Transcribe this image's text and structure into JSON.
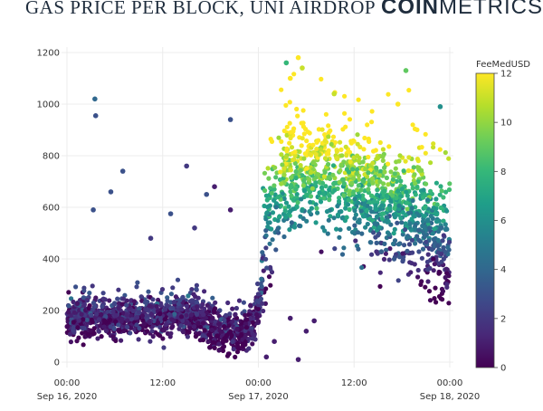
{
  "header": {
    "title": "GAS PRICE PER BLOCK, UNI AIRDROP",
    "logo_bold": "COIN",
    "logo_thin": "METRICS"
  },
  "chart_data": {
    "type": "scatter",
    "title": "GAS PRICE PER BLOCK, UNI AIRDROP",
    "xlabel": "",
    "ylabel": "",
    "ylim": [
      -20,
      1200
    ],
    "yticks": [
      0,
      200,
      400,
      600,
      800,
      1000,
      1200
    ],
    "xticks": [
      {
        "t": 0,
        "label": "00:00",
        "sublabel": "Sep 16, 2020"
      },
      {
        "t": 12,
        "label": "12:00",
        "sublabel": ""
      },
      {
        "t": 24,
        "label": "00:00",
        "sublabel": "Sep 17, 2020"
      },
      {
        "t": 36,
        "label": "12:00",
        "sublabel": ""
      },
      {
        "t": 48,
        "label": "00:00",
        "sublabel": "Sep 18, 2020"
      }
    ],
    "x_unit": "hours from Sep 16, 2020 00:00",
    "colorbar": {
      "title": "FeeMedUSD",
      "min": 0,
      "max": 12,
      "ticks": [
        0,
        2,
        4,
        6,
        8,
        10,
        12
      ],
      "colorscale": [
        "#440154",
        "#482878",
        "#3e4989",
        "#31688e",
        "#26828e",
        "#1f9e89",
        "#35b779",
        "#6ece58",
        "#b5de2b",
        "#fde725"
      ]
    },
    "trend": [
      {
        "x": 0,
        "y": 160
      },
      {
        "x": 2,
        "y": 175
      },
      {
        "x": 4,
        "y": 170
      },
      {
        "x": 6,
        "y": 165
      },
      {
        "x": 8,
        "y": 170
      },
      {
        "x": 10,
        "y": 175
      },
      {
        "x": 12,
        "y": 165
      },
      {
        "x": 14,
        "y": 190
      },
      {
        "x": 16,
        "y": 180
      },
      {
        "x": 18,
        "y": 130
      },
      {
        "x": 20,
        "y": 115
      },
      {
        "x": 22,
        "y": 110
      },
      {
        "x": 23.5,
        "y": 170
      },
      {
        "x": 24.5,
        "y": 300
      },
      {
        "x": 25,
        "y": 560
      },
      {
        "x": 26,
        "y": 640
      },
      {
        "x": 28,
        "y": 720
      },
      {
        "x": 30,
        "y": 740
      },
      {
        "x": 32,
        "y": 760
      },
      {
        "x": 34,
        "y": 720
      },
      {
        "x": 36,
        "y": 680
      },
      {
        "x": 38,
        "y": 640
      },
      {
        "x": 40,
        "y": 620
      },
      {
        "x": 42,
        "y": 600
      },
      {
        "x": 44,
        "y": 560
      },
      {
        "x": 46,
        "y": 480
      },
      {
        "x": 47,
        "y": 440
      },
      {
        "x": 48,
        "y": 460
      }
    ],
    "outliers": [
      {
        "x": 3.5,
        "y": 1020,
        "c": 4
      },
      {
        "x": 3.6,
        "y": 955,
        "c": 3
      },
      {
        "x": 5.5,
        "y": 660,
        "c": 3
      },
      {
        "x": 7,
        "y": 740,
        "c": 3
      },
      {
        "x": 3.3,
        "y": 590,
        "c": 3
      },
      {
        "x": 20.5,
        "y": 940,
        "c": 3
      },
      {
        "x": 20.5,
        "y": 590,
        "c": 1
      },
      {
        "x": 18.5,
        "y": 680,
        "c": 1
      },
      {
        "x": 17.5,
        "y": 650,
        "c": 3
      },
      {
        "x": 15,
        "y": 760,
        "c": 2
      },
      {
        "x": 16,
        "y": 520,
        "c": 2
      },
      {
        "x": 13,
        "y": 575,
        "c": 3
      },
      {
        "x": 10.5,
        "y": 480,
        "c": 2
      },
      {
        "x": 26,
        "y": 80,
        "c": 1
      },
      {
        "x": 28,
        "y": 170,
        "c": 1
      },
      {
        "x": 30,
        "y": 120,
        "c": 1
      },
      {
        "x": 31,
        "y": 160,
        "c": 1
      },
      {
        "x": 27.5,
        "y": 1160,
        "c": 8
      },
      {
        "x": 29,
        "y": 1180,
        "c": 12
      },
      {
        "x": 29.5,
        "y": 1140,
        "c": 11
      },
      {
        "x": 42.5,
        "y": 1130,
        "c": 9
      },
      {
        "x": 46.8,
        "y": 990,
        "c": 6
      },
      {
        "x": 41.5,
        "y": 1000,
        "c": 12
      },
      {
        "x": 28,
        "y": 1100,
        "c": 12
      },
      {
        "x": 33.5,
        "y": 1040,
        "c": 11
      },
      {
        "x": 29,
        "y": 10,
        "c": 1
      },
      {
        "x": 25,
        "y": 20,
        "c": 1
      }
    ]
  }
}
